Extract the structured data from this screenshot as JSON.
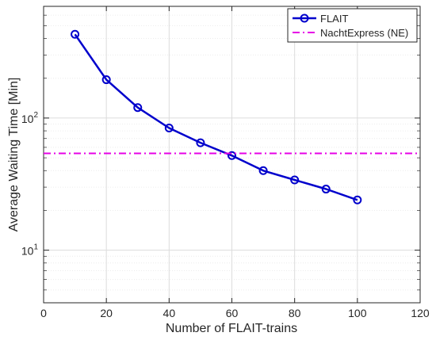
{
  "chart_data": {
    "type": "line",
    "title": "",
    "xlabel": "Number of FLAIT-trains",
    "ylabel": "Average Waiting Time [Min]",
    "xlim": [
      0,
      120
    ],
    "ylim": [
      4,
      700
    ],
    "yscale": "log",
    "grid": true,
    "legend": "top-right",
    "x_ticks": [
      {
        "value": 0,
        "label": "0"
      },
      {
        "value": 20,
        "label": "20"
      },
      {
        "value": 40,
        "label": "40"
      },
      {
        "value": 60,
        "label": "60"
      },
      {
        "value": 80,
        "label": "80"
      },
      {
        "value": 100,
        "label": "100"
      },
      {
        "value": 120,
        "label": "120"
      }
    ],
    "y_ticks": [
      {
        "value": 10,
        "base": "10",
        "exp": "1"
      },
      {
        "value": 100,
        "base": "10",
        "exp": "2"
      }
    ],
    "series": [
      {
        "name": "FLAIT",
        "color": "#0000cc",
        "style": "solid",
        "marker": "circle",
        "x": [
          10,
          20,
          30,
          40,
          50,
          60,
          70,
          80,
          90,
          100
        ],
        "y": [
          430,
          195,
          120,
          84,
          65,
          52,
          40,
          34,
          29,
          24
        ]
      },
      {
        "name": "NachtExpress (NE)",
        "color": "#e600e6",
        "style": "dashdot",
        "marker": "none",
        "x": [
          0,
          120
        ],
        "y": [
          54,
          54
        ]
      }
    ]
  }
}
